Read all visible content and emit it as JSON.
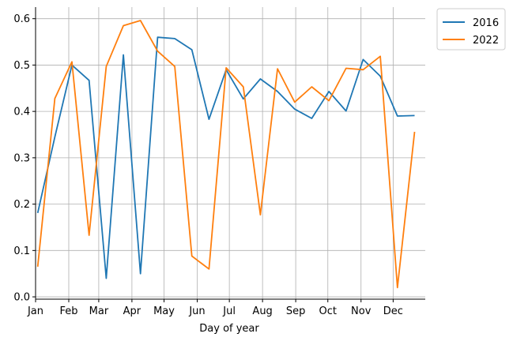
{
  "chart_data": {
    "type": "line",
    "title": "",
    "xlabel": "Day of year",
    "ylabel": "",
    "x_unit": "day of year",
    "xlim": [
      1,
      365
    ],
    "ylim": [
      -0.005,
      0.625
    ],
    "grid": true,
    "legend_position": "outside-top-right",
    "x_ticks": [
      {
        "label": "Jan",
        "day": 1
      },
      {
        "label": "Feb",
        "day": 32
      },
      {
        "label": "Mar",
        "day": 60
      },
      {
        "label": "Apr",
        "day": 91
      },
      {
        "label": "May",
        "day": 121
      },
      {
        "label": "Jun",
        "day": 152
      },
      {
        "label": "Jul",
        "day": 182
      },
      {
        "label": "Aug",
        "day": 213
      },
      {
        "label": "Sep",
        "day": 244
      },
      {
        "label": "Oct",
        "day": 274
      },
      {
        "label": "Nov",
        "day": 305
      },
      {
        "label": "Dec",
        "day": 335
      }
    ],
    "y_ticks": [
      {
        "label": "0.0",
        "value": 0.0
      },
      {
        "label": "0.1",
        "value": 0.1
      },
      {
        "label": "0.2",
        "value": 0.2
      },
      {
        "label": "0.3",
        "value": 0.3
      },
      {
        "label": "0.4",
        "value": 0.4
      },
      {
        "label": "0.5",
        "value": 0.5
      },
      {
        "label": "0.6",
        "value": 0.6
      }
    ],
    "x": [
      3,
      19,
      35,
      51,
      67,
      83,
      99,
      115,
      131,
      147,
      163,
      179,
      195,
      211,
      227,
      243,
      259,
      275,
      291,
      307,
      323,
      339,
      355
    ],
    "series": [
      {
        "name": "2016",
        "color": "#1f77b4",
        "values": [
          0.181,
          0.345,
          0.5,
          0.467,
          0.04,
          0.522,
          0.05,
          0.56,
          0.557,
          0.533,
          0.383,
          0.49,
          0.427,
          0.47,
          0.443,
          0.405,
          0.385,
          0.443,
          0.401,
          0.512,
          0.476,
          0.39,
          0.391
        ]
      },
      {
        "name": "2022",
        "color": "#ff7f0e",
        "values": [
          0.065,
          0.428,
          0.507,
          0.133,
          0.497,
          0.585,
          0.596,
          0.53,
          0.497,
          0.088,
          0.06,
          0.494,
          0.453,
          0.177,
          0.492,
          0.42,
          0.453,
          0.423,
          0.493,
          0.49,
          0.519,
          0.02,
          0.356
        ]
      }
    ]
  }
}
